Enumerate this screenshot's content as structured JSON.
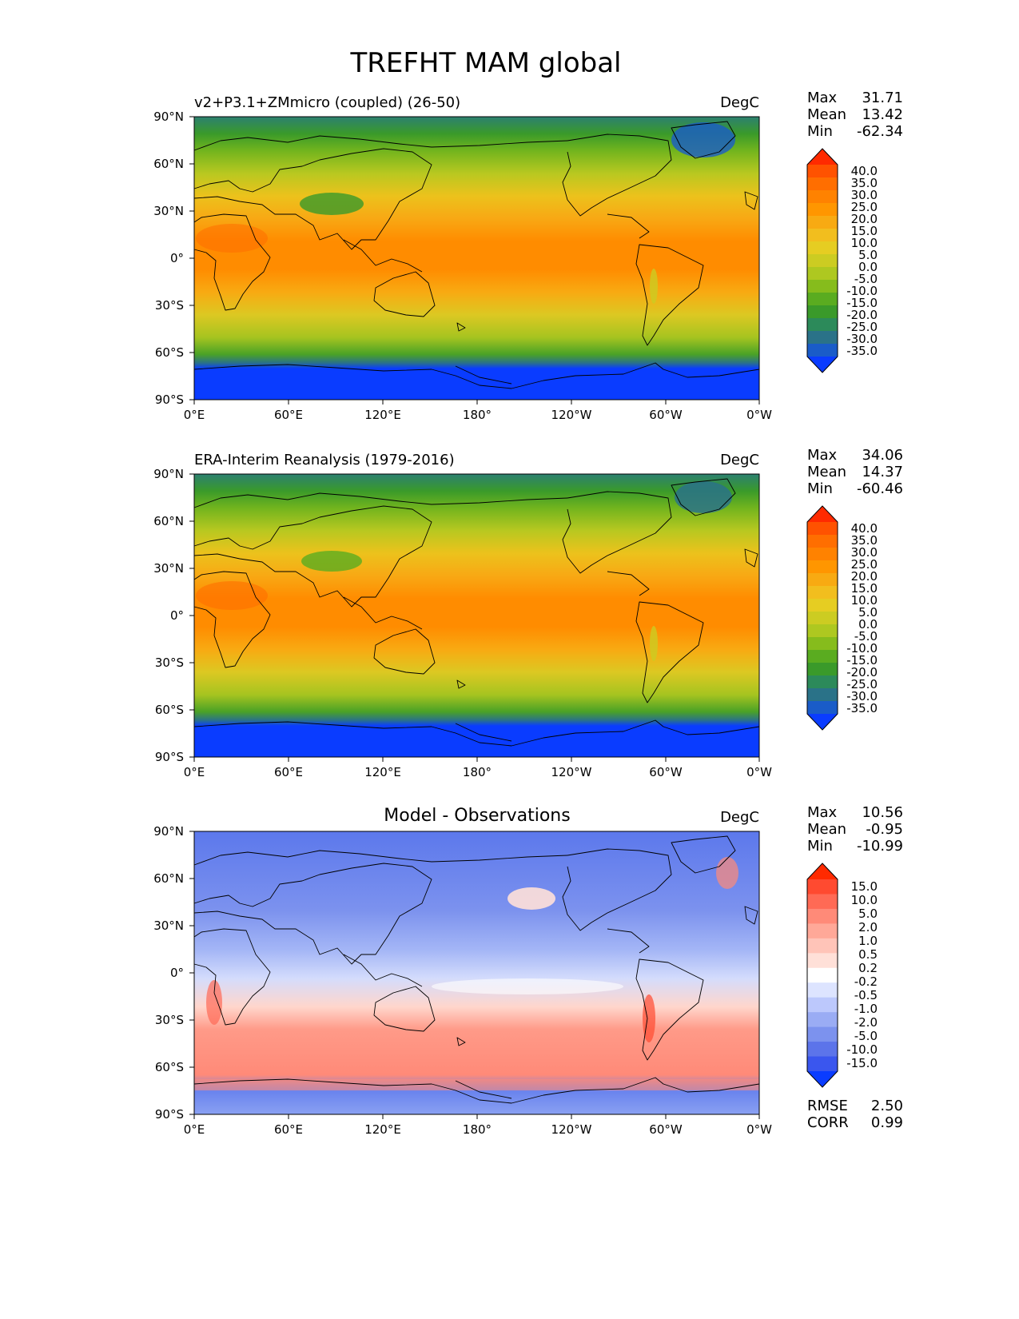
{
  "figure_title": "TREFHT MAM global",
  "lat_ticks": [
    "90°N",
    "60°N",
    "30°N",
    "0°",
    "30°S",
    "60°S",
    "90°S"
  ],
  "lon_ticks": [
    "0°E",
    "60°E",
    "120°E",
    "180°",
    "120°W",
    "60°W",
    "0°W"
  ],
  "panels": [
    {
      "id": "test",
      "title_left": "v2+P3.1+ZMmicro (coupled) (26-50)",
      "title_center": "",
      "units": "DegC",
      "stats": [
        {
          "label": "Max",
          "value": "31.71"
        },
        {
          "label": "Mean",
          "value": "13.42"
        },
        {
          "label": "Min",
          "value": "-62.34"
        }
      ],
      "colorbar": {
        "labels": [
          "40.0",
          "35.0",
          "30.0",
          "25.0",
          "20.0",
          "15.0",
          "10.0",
          "5.0",
          "0.0",
          "-5.0",
          "-10.0",
          "-15.0",
          "-20.0",
          "-25.0",
          "-30.0",
          "-35.0"
        ],
        "colors": [
          "#ff2a00",
          "#ff5200",
          "#ff6e00",
          "#ff8200",
          "#ff9600",
          "#f8aa12",
          "#f2be1e",
          "#e6cd22",
          "#cccc22",
          "#aec820",
          "#86bc1c",
          "#5aac20",
          "#3a9a2a",
          "#2c8a5a",
          "#2a7288",
          "#1a5cc8",
          "#0a3cff"
        ]
      },
      "notes": []
    },
    {
      "id": "reference",
      "title_left": "ERA-Interim Reanalysis (1979-2016)",
      "title_center": "",
      "units": "DegC",
      "stats": [
        {
          "label": "Max",
          "value": "34.06"
        },
        {
          "label": "Mean",
          "value": "14.37"
        },
        {
          "label": "Min",
          "value": "-60.46"
        }
      ],
      "colorbar": {
        "labels": [
          "40.0",
          "35.0",
          "30.0",
          "25.0",
          "20.0",
          "15.0",
          "10.0",
          "5.0",
          "0.0",
          "-5.0",
          "-10.0",
          "-15.0",
          "-20.0",
          "-25.0",
          "-30.0",
          "-35.0"
        ],
        "colors": [
          "#ff2a00",
          "#ff5200",
          "#ff6e00",
          "#ff8200",
          "#ff9600",
          "#f8aa12",
          "#f2be1e",
          "#e6cd22",
          "#cccc22",
          "#aec820",
          "#86bc1c",
          "#5aac20",
          "#3a9a2a",
          "#2c8a5a",
          "#2a7288",
          "#1a5cc8",
          "#0a3cff"
        ]
      },
      "notes": []
    },
    {
      "id": "difference",
      "title_left": "",
      "title_center": "Model - Observations",
      "units": "DegC",
      "stats": [
        {
          "label": "Max",
          "value": "10.56"
        },
        {
          "label": "Mean",
          "value": "-0.95"
        },
        {
          "label": "Min",
          "value": "-10.99"
        }
      ],
      "colorbar": {
        "labels": [
          "15.0",
          "10.0",
          "5.0",
          "2.0",
          "1.0",
          "0.5",
          "0.2",
          "-0.2",
          "-0.5",
          "-1.0",
          "-2.0",
          "-5.0",
          "-10.0",
          "-15.0"
        ],
        "colors": [
          "#ff2a00",
          "#ff4a30",
          "#ff6a55",
          "#ff8a78",
          "#ffa898",
          "#ffc4b8",
          "#ffe0d8",
          "#ffffff",
          "#dde4ff",
          "#bcc8fc",
          "#9aacf4",
          "#7c92ee",
          "#5c74ea",
          "#3a56ee",
          "#0a3cff"
        ]
      },
      "notes": [
        {
          "label": "RMSE",
          "value": "2.50"
        },
        {
          "label": "CORR",
          "value": "0.99"
        }
      ]
    }
  ]
}
